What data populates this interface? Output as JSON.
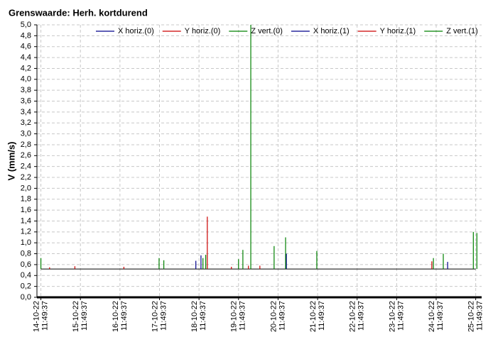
{
  "chart_data": {
    "type": "stem",
    "title": "Grenswaarde: Herh. kortdurend",
    "y_label": "V (mm/s)",
    "ylim": [
      0,
      5
    ],
    "yticks": [
      {
        "value": 0,
        "label": "0,0"
      },
      {
        "value": 0.2,
        "label": "0,2"
      },
      {
        "value": 0.4,
        "label": "0,4"
      },
      {
        "value": 0.6,
        "label": "0,6"
      },
      {
        "value": 0.8,
        "label": "0,8"
      },
      {
        "value": 1,
        "label": "1,0"
      },
      {
        "value": 1.2,
        "label": "1,2"
      },
      {
        "value": 1.4,
        "label": "1,4"
      },
      {
        "value": 1.6,
        "label": "1,6"
      },
      {
        "value": 1.8,
        "label": "1,8"
      },
      {
        "value": 2,
        "label": "2,0"
      },
      {
        "value": 2.2,
        "label": "2,2"
      },
      {
        "value": 2.4,
        "label": "2,4"
      },
      {
        "value": 2.6,
        "label": "2,6"
      },
      {
        "value": 2.8,
        "label": "2,8"
      },
      {
        "value": 3,
        "label": "3,0"
      },
      {
        "value": 3.2,
        "label": "3,2"
      },
      {
        "value": 3.4,
        "label": "3,4"
      },
      {
        "value": 3.6,
        "label": "3,6"
      },
      {
        "value": 3.8,
        "label": "3,8"
      },
      {
        "value": 4,
        "label": "4,0"
      },
      {
        "value": 4.2,
        "label": "4,2"
      },
      {
        "value": 4.4,
        "label": "4,4"
      },
      {
        "value": 4.6,
        "label": "4,6"
      },
      {
        "value": 4.8,
        "label": "4,8"
      },
      {
        "value": 5,
        "label": "5,0"
      }
    ],
    "xlim": [
      -0.1,
      11.15
    ],
    "xticks": [
      {
        "value": 0,
        "label": [
          "14-10-22",
          "11:49:37"
        ]
      },
      {
        "value": 1,
        "label": [
          "15-10-22",
          "11:49:37"
        ]
      },
      {
        "value": 2,
        "label": [
          "16-10-22",
          "11:49:37"
        ]
      },
      {
        "value": 3,
        "label": [
          "17-10-22",
          "11:49:37"
        ]
      },
      {
        "value": 4,
        "label": [
          "18-10-22",
          "11:49:37"
        ]
      },
      {
        "value": 5,
        "label": [
          "19-10-22",
          "11:49:37"
        ]
      },
      {
        "value": 6,
        "label": [
          "20-10-22",
          "11:49:37"
        ]
      },
      {
        "value": 7,
        "label": [
          "21-10-22",
          "11:49:37"
        ]
      },
      {
        "value": 8,
        "label": [
          "22-10-22",
          "11:49:37"
        ]
      },
      {
        "value": 9,
        "label": [
          "23-10-22",
          "11:49:37"
        ]
      },
      {
        "value": 10,
        "label": [
          "24-10-22",
          "11:49:37"
        ]
      },
      {
        "value": 11,
        "label": [
          "25-10-22",
          "11:49:37"
        ]
      }
    ],
    "baseline": 0.52,
    "baseline_color": "#000000",
    "grid": true,
    "legend": "top",
    "series": [
      {
        "name": "X horiz.(0)",
        "color": "#00008b",
        "x": [
          3.92,
          4.05
        ],
        "values": [
          0.67,
          0.77
        ]
      },
      {
        "name": "Y horiz.(0)",
        "color": "#cc0000",
        "x": [
          0.22,
          0.86,
          2.1,
          4.21
        ],
        "values": [
          0.55,
          0.57,
          0.56,
          1.48
        ]
      },
      {
        "name": "Z vert.(0)",
        "color": "#008000",
        "x": [
          0.0,
          2.99,
          3.11,
          4.1,
          4.17,
          5.0,
          5.11,
          5.31
        ],
        "values": [
          0.72,
          0.72,
          0.68,
          0.72,
          0.78,
          0.7,
          0.87,
          5.0
        ]
      },
      {
        "name": "X horiz.(1)",
        "color": "#00008b",
        "x": [
          6.21,
          10.29
        ],
        "values": [
          0.8,
          0.65
        ]
      },
      {
        "name": "Y horiz.(1)",
        "color": "#cc0000",
        "x": [
          4.82,
          5.25,
          5.54,
          9.89
        ],
        "values": [
          0.56,
          0.58,
          0.58,
          0.66
        ]
      },
      {
        "name": "Z vert.(1)",
        "color": "#008000",
        "x": [
          5.9,
          6.19,
          6.98,
          9.93,
          10.18,
          10.94,
          11.03
        ],
        "values": [
          0.94,
          1.1,
          0.85,
          0.72,
          0.8,
          1.2,
          1.18
        ]
      }
    ]
  }
}
